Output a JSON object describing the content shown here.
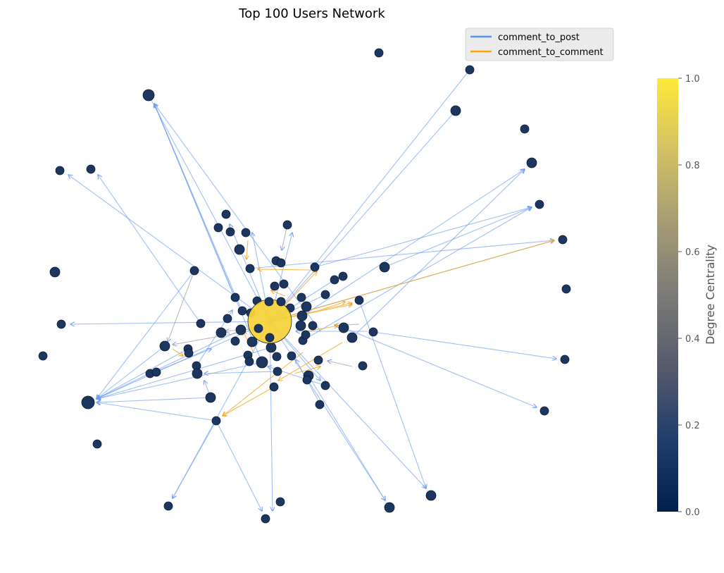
{
  "chart_data": {
    "type": "network",
    "title": "Top 100 Users Network",
    "legend": {
      "placement": "top-right",
      "entries": [
        {
          "name": "comment_to_post",
          "color": "#5b8ff9"
        },
        {
          "name": "comment_to_comment",
          "color": "#ffa500"
        }
      ]
    },
    "colorbar": {
      "label": "Degree Centrality",
      "range": [
        0,
        1
      ],
      "ticks": [
        "0.0",
        "0.2",
        "0.4",
        "0.6",
        "0.8",
        "1.0"
      ],
      "colormap": "cividis",
      "stops": [
        "#00204c",
        "#213d6b",
        "#555b6c",
        "#7b7a77",
        "#a59c74",
        "#d3c164",
        "#fee838"
      ]
    },
    "hub_node": {
      "degree_centrality": 1.0
    },
    "colors": {
      "node_low": "#1d3660",
      "edge_post": "#5b8ff9",
      "edge_comment": "#ffa500"
    }
  }
}
